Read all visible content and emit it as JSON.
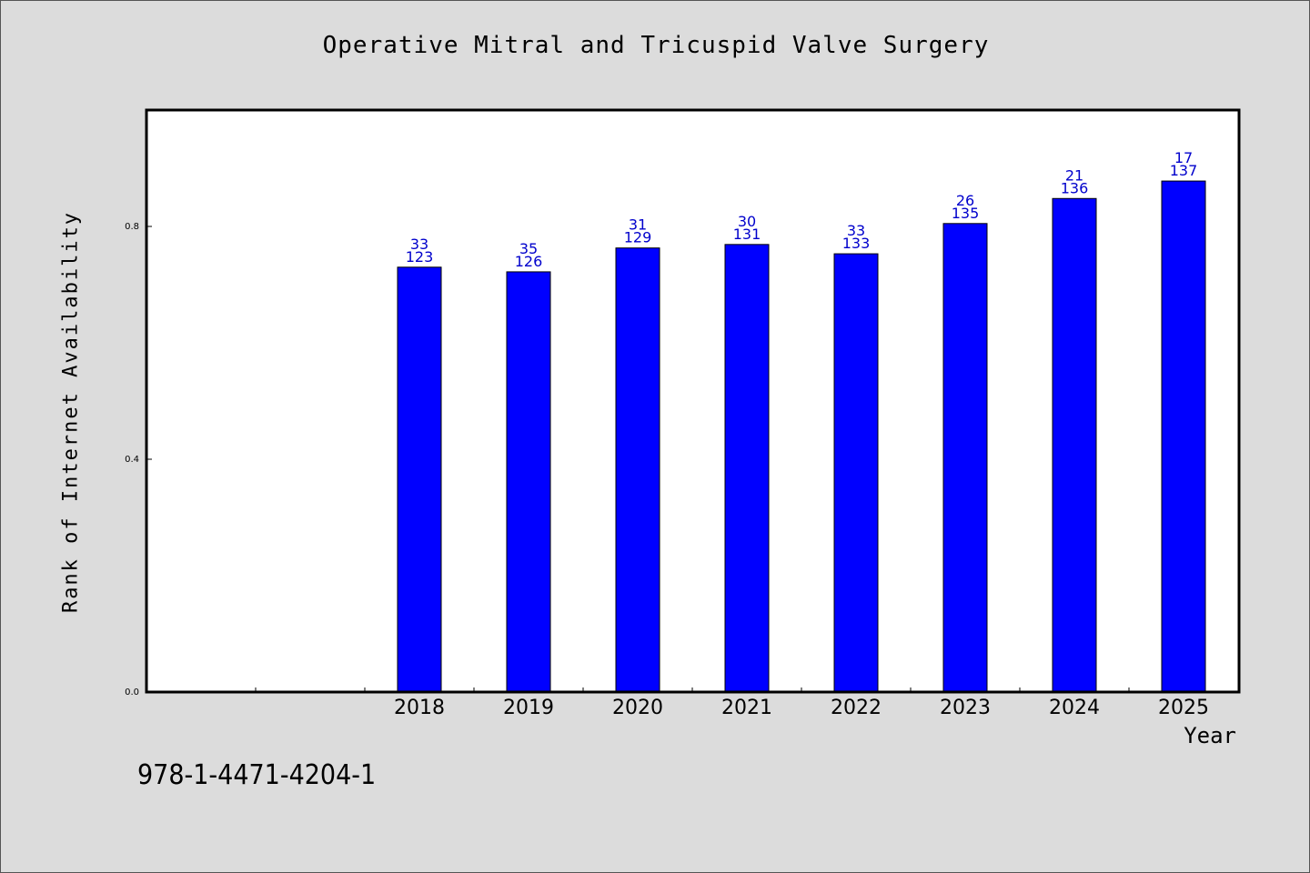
{
  "footer": {
    "isbn": "978-1-4471-4204-1"
  },
  "colors": {
    "bar": "#0000ff",
    "label": "#0000cc",
    "plot_bg": "#ffffff",
    "page_bg": "#dcdcdc"
  },
  "chart_data": {
    "type": "bar",
    "title": "Operative Mitral and Tricuspid Valve Surgery",
    "xlabel": "Year",
    "ylabel": "Rank of Internet Availability",
    "ylim": [
      0,
      1.0
    ],
    "yticks": [
      "0.0",
      "0.4",
      "0.8"
    ],
    "grid": false,
    "legend": "none",
    "categories": [
      "2018",
      "2019",
      "2020",
      "2021",
      "2022",
      "2023",
      "2024",
      "2025"
    ],
    "values": [
      0.73,
      0.722,
      0.763,
      0.769,
      0.753,
      0.805,
      0.848,
      0.878
    ],
    "label_top": [
      "33",
      "35",
      "31",
      "30",
      "33",
      "26",
      "21",
      "17"
    ],
    "label_bottom": [
      "123",
      "126",
      "129",
      "131",
      "133",
      "135",
      "136",
      "137"
    ]
  }
}
